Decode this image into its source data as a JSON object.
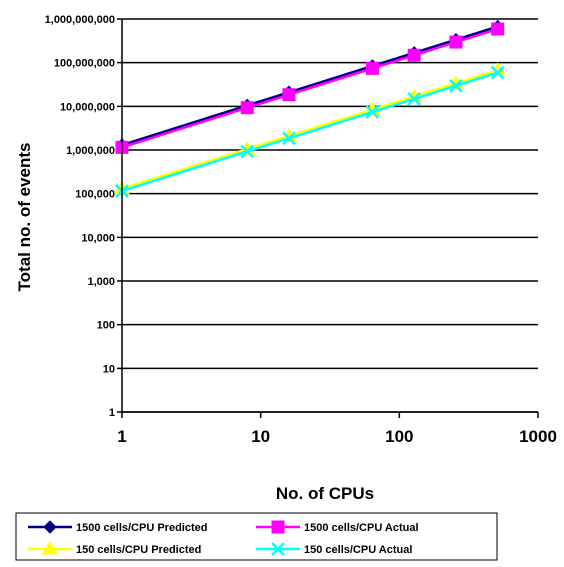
{
  "chart_data": {
    "type": "line",
    "xlabel": "No. of CPUs",
    "ylabel": "Total no. of events",
    "x_scale": "log",
    "y_scale": "log",
    "xlim": [
      1,
      1000
    ],
    "ylim": [
      1,
      1000000000
    ],
    "x_ticks": [
      1,
      10,
      100,
      1000
    ],
    "x_tick_labels": [
      "1",
      "10",
      "100",
      "1000"
    ],
    "y_ticks": [
      1,
      10,
      100,
      1000,
      10000,
      100000,
      1000000,
      10000000,
      100000000,
      1000000000
    ],
    "y_tick_labels": [
      "1",
      "10",
      "100",
      "1,000",
      "10,000",
      "100,000",
      "1,000,000",
      "10,000,000",
      "100,000,000",
      "1,000,000,000"
    ],
    "grid": "horizontal",
    "legend_position": "bottom",
    "x": [
      1,
      8,
      16,
      64,
      128,
      256,
      512
    ],
    "series": [
      {
        "name": "1500 cells/CPU Predicted",
        "color": "#000080",
        "marker": "diamond",
        "values": [
          1300000,
          10500000,
          21000000,
          84000000,
          168000000,
          336000000,
          672000000
        ]
      },
      {
        "name": "1500 cells/CPU Actual",
        "color": "#ff00ff",
        "marker": "square",
        "values": [
          1150000,
          9300000,
          18500000,
          74000000,
          148000000,
          296000000,
          590000000
        ]
      },
      {
        "name": "150 cells/CPU Predicted",
        "color": "#ffff00",
        "marker": "triangle",
        "values": [
          130000,
          1050000,
          2100000,
          8400000,
          16800000,
          33600000,
          67000000
        ]
      },
      {
        "name": "150 cells/CPU Actual",
        "color": "#00ffff",
        "marker": "x",
        "values": [
          115000,
          930000,
          1850000,
          7400000,
          14800000,
          29600000,
          59000000
        ]
      }
    ]
  }
}
